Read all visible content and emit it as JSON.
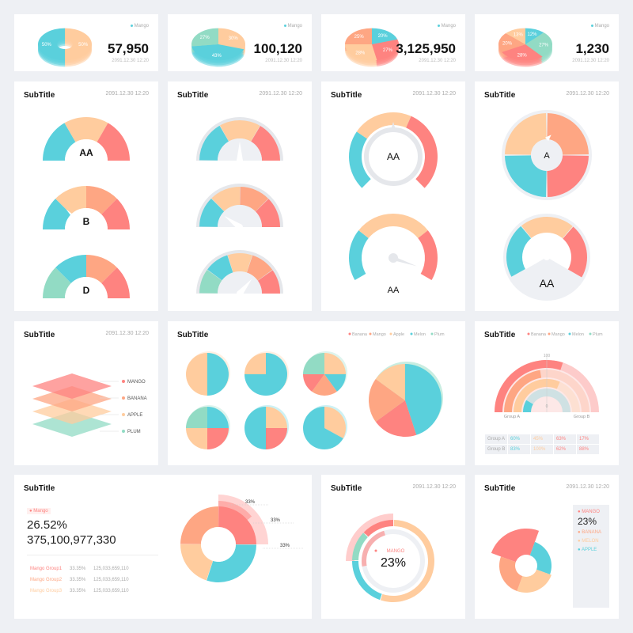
{
  "colors": {
    "red": "#fe8380",
    "orange": "#fea683",
    "peach": "#ffcc9e",
    "cyan": "#5ad0dc",
    "mint": "#92dbc4",
    "grey": "#eef0f4",
    "dark": "#111111"
  },
  "kpis": [
    {
      "value": "57,950",
      "date": "2091.12.30 12:20",
      "legend": "Mango",
      "slices": [
        {
          "label": "50%",
          "value": 50,
          "color": "peach"
        },
        {
          "label": "50%",
          "value": 50,
          "color": "cyan"
        }
      ]
    },
    {
      "value": "100,120",
      "date": "2091.12.30 12:20",
      "legend": "Mango",
      "slices": [
        {
          "label": "30%",
          "value": 30,
          "color": "peach"
        },
        {
          "label": "43%",
          "value": 43,
          "color": "cyan"
        },
        {
          "label": "27%",
          "value": 27,
          "color": "mint"
        }
      ]
    },
    {
      "value": "3,125,950",
      "date": "2091.12.30 12:20",
      "legend": "Mango",
      "slices": [
        {
          "label": "20%",
          "value": 20,
          "color": "cyan"
        },
        {
          "label": "27%",
          "value": 27,
          "color": "red"
        },
        {
          "label": "28%",
          "value": 28,
          "color": "peach"
        },
        {
          "label": "25%",
          "value": 25,
          "color": "orange"
        }
      ]
    },
    {
      "value": "1,230",
      "date": "2091.12.30 12:20",
      "legend": "Mango",
      "slices": [
        {
          "label": "12%",
          "value": 12,
          "color": "cyan"
        },
        {
          "label": "27%",
          "value": 27,
          "color": "mint"
        },
        {
          "label": "28%",
          "value": 28,
          "color": "red"
        },
        {
          "label": "20%",
          "value": 20,
          "color": "orange"
        },
        {
          "label": "13%",
          "value": 13,
          "color": "peach"
        }
      ]
    }
  ],
  "cards": {
    "title": "SubTitle",
    "date": "2091.12.30 12:20"
  },
  "semi_gauges": [
    {
      "label": "AA",
      "segments": [
        {
          "value": 1,
          "color": "cyan"
        },
        {
          "value": 1,
          "color": "peach"
        },
        {
          "value": 1,
          "color": "red"
        }
      ],
      "needle": null
    },
    {
      "label": "B",
      "segments": [
        {
          "value": 1,
          "color": "cyan"
        },
        {
          "value": 1,
          "color": "peach"
        },
        {
          "value": 1,
          "color": "orange"
        },
        {
          "value": 1,
          "color": "red"
        }
      ],
      "needle": 0.25
    },
    {
      "label": "D",
      "segments": [
        {
          "value": 1,
          "color": "mint"
        },
        {
          "value": 1,
          "color": "cyan"
        },
        {
          "value": 1,
          "color": "orange"
        },
        {
          "value": 1,
          "color": "red"
        }
      ],
      "needle": null
    }
  ],
  "needle_gauges": [
    {
      "segments": [
        {
          "value": 1,
          "color": "cyan"
        },
        {
          "value": 1,
          "color": "peach"
        },
        {
          "value": 1,
          "color": "red"
        }
      ],
      "needle": 0.5
    },
    {
      "segments": [
        {
          "value": 1,
          "color": "cyan"
        },
        {
          "value": 1,
          "color": "peach"
        },
        {
          "value": 1,
          "color": "orange"
        },
        {
          "value": 1,
          "color": "red"
        }
      ],
      "needle": 0.2
    },
    {
      "segments": [
        {
          "value": 1,
          "color": "mint"
        },
        {
          "value": 1,
          "color": "cyan"
        },
        {
          "value": 1,
          "color": "peach"
        },
        {
          "value": 1,
          "color": "orange"
        },
        {
          "value": 1,
          "color": "red"
        }
      ],
      "needle": 0.72
    }
  ],
  "ring_gauges": [
    {
      "label": "AA",
      "start": -135,
      "end": 135,
      "segments": [
        {
          "value": 1,
          "color": "cyan"
        },
        {
          "value": 1,
          "color": "peach"
        },
        {
          "value": 1.4,
          "color": "red"
        }
      ],
      "needle": 0.5
    },
    {
      "label": "AA",
      "start": -120,
      "end": 120,
      "segments": [
        {
          "value": 1,
          "color": "cyan"
        },
        {
          "value": 1.5,
          "color": "peach"
        },
        {
          "value": 1,
          "color": "red"
        }
      ],
      "needle": 0.25
    }
  ],
  "quad_gauges": [
    {
      "label": "A",
      "quads": [
        "peach",
        "orange",
        "cyan",
        "red"
      ]
    },
    {
      "label": "AA",
      "segments": [
        {
          "value": 1,
          "color": "cyan"
        },
        {
          "value": 1,
          "color": "peach"
        },
        {
          "value": 1,
          "color": "red"
        }
      ],
      "needle": 0.5
    }
  ],
  "layers": {
    "items": [
      {
        "label": "MANGO",
        "color": "red"
      },
      {
        "label": "BANANA",
        "color": "orange"
      },
      {
        "label": "APPLE",
        "color": "peach"
      },
      {
        "label": "PLUM",
        "color": "mint"
      }
    ]
  },
  "pies": {
    "legend": [
      {
        "label": "Banana",
        "color": "red"
      },
      {
        "label": "Mango",
        "color": "orange"
      },
      {
        "label": "Apple",
        "color": "peach"
      },
      {
        "label": "Melon",
        "color": "cyan"
      },
      {
        "label": "Plum",
        "color": "mint"
      }
    ],
    "small": [
      [
        {
          "value": 50,
          "color": "cyan"
        },
        {
          "value": 50,
          "color": "peach"
        }
      ],
      [
        {
          "value": 75,
          "color": "cyan"
        },
        {
          "value": 25,
          "color": "peach"
        }
      ],
      [
        {
          "value": 25,
          "color": "peach"
        },
        {
          "value": 15,
          "color": "cyan"
        },
        {
          "value": 20,
          "color": "orange"
        },
        {
          "value": 15,
          "color": "red"
        },
        {
          "value": 25,
          "color": "mint"
        }
      ],
      [
        {
          "value": 25,
          "color": "cyan"
        },
        {
          "value": 25,
          "color": "red"
        },
        {
          "value": 25,
          "color": "peach"
        },
        {
          "value": 25,
          "color": "mint"
        }
      ],
      [
        {
          "value": 25,
          "color": "peach"
        },
        {
          "value": 25,
          "color": "red"
        },
        {
          "value": 50,
          "color": "cyan"
        }
      ],
      [
        {
          "value": 33,
          "color": "peach"
        },
        {
          "value": 17,
          "color": "cyan"
        },
        {
          "value": 50,
          "color": "cyan"
        }
      ]
    ],
    "big": [
      {
        "value": 45,
        "color": "cyan"
      },
      {
        "value": 20,
        "color": "red"
      },
      {
        "value": 20,
        "color": "orange"
      },
      {
        "value": 15,
        "color": "peach"
      }
    ]
  },
  "concentric": {
    "legend": [
      {
        "label": "Banana",
        "color": "red"
      },
      {
        "label": "Mango",
        "color": "orange"
      },
      {
        "label": "Melon",
        "color": "cyan"
      },
      {
        "label": "Plum",
        "color": "mint"
      }
    ],
    "max_label": "100",
    "zero_label": "0",
    "group_a": "Group A",
    "group_b": "Group B",
    "rings": [
      {
        "color": "red",
        "value": 0.6
      },
      {
        "color": "orange",
        "value": 0.45
      },
      {
        "color": "peach",
        "value": 0.63
      },
      {
        "color": "cyan",
        "value": 0.17
      }
    ],
    "table": [
      {
        "name": "Group A",
        "vals": [
          "60%",
          "45%",
          "63%",
          "17%"
        ],
        "colors": [
          "cyan",
          "peach",
          "red",
          "red"
        ]
      },
      {
        "name": "Group B",
        "vals": [
          "83%",
          "100%",
          "62%",
          "88%"
        ],
        "colors": [
          "cyan",
          "peach",
          "red",
          "red"
        ]
      }
    ]
  },
  "donut_detail": {
    "tag": "Mango",
    "percent": "26.52%",
    "total": "375,100,977,330",
    "rows": [
      {
        "name": "Mango Group1",
        "pct": "33.35%",
        "val": "125,033,659,110"
      },
      {
        "name": "Mango Group2",
        "pct": "33.35%",
        "val": "125,033,659,110"
      },
      {
        "name": "Mango Group3",
        "pct": "33.35%",
        "val": "125,033,659,110"
      }
    ],
    "callouts": [
      "33%",
      "33%",
      "33%"
    ],
    "segments": [
      {
        "value": 25,
        "color": "red"
      },
      {
        "value": 30,
        "color": "cyan"
      },
      {
        "value": 20,
        "color": "peach"
      },
      {
        "value": 25,
        "color": "orange"
      }
    ]
  },
  "double_ring": {
    "tag": "MANGO",
    "value": "23%",
    "outer": [
      {
        "value": 55,
        "color": "peach"
      },
      {
        "value": 20,
        "color": "cyan"
      },
      {
        "value": 12,
        "color": "mint"
      },
      {
        "value": 13,
        "color": "red"
      }
    ],
    "inner": 0.23
  },
  "rose": {
    "legend": [
      {
        "label": "MANGO",
        "color": "red"
      },
      {
        "label": "BANANA",
        "color": "orange"
      },
      {
        "label": "MELON",
        "color": "peach"
      },
      {
        "label": "APPLE",
        "color": "cyan"
      }
    ],
    "value": "23%"
  }
}
